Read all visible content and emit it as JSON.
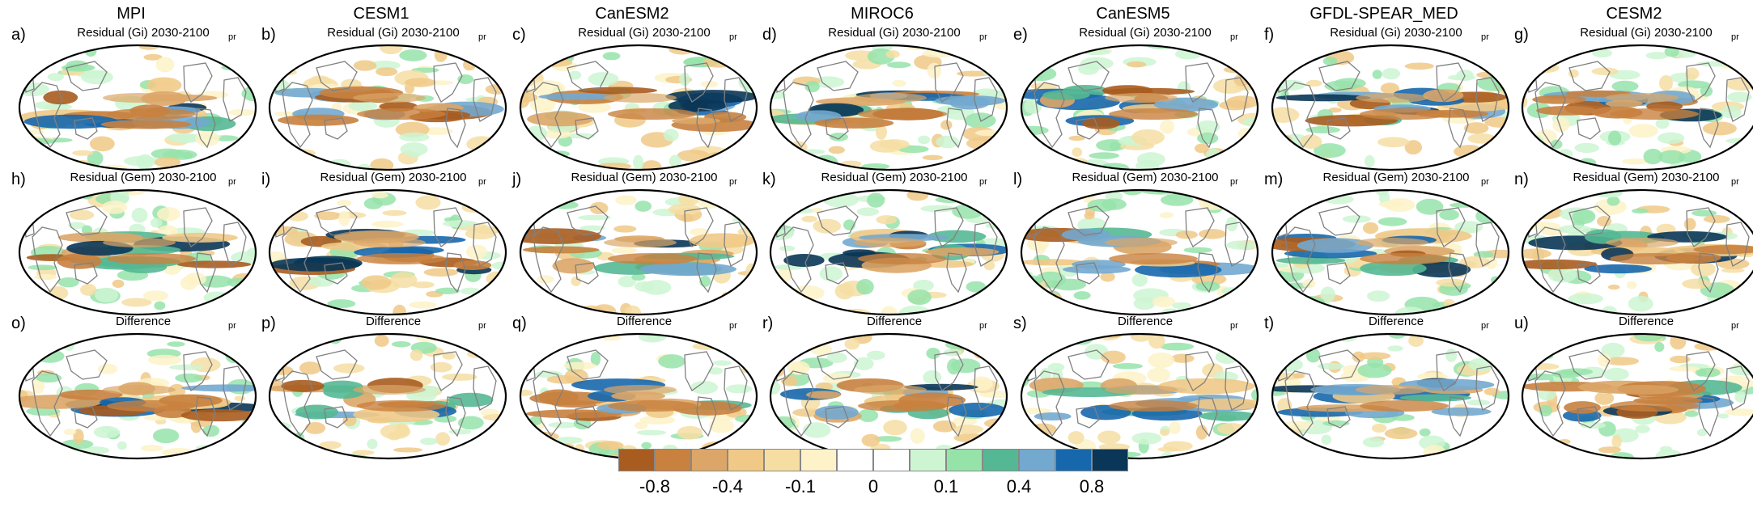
{
  "models": [
    "MPI",
    "CESM1",
    "CanESM2",
    "MIROC6",
    "CanESM5",
    "GFDL-SPEAR_MED",
    "CESM2"
  ],
  "rows": [
    {
      "title": "Residual (Gi) 2030-2100",
      "letters": [
        "a)",
        "b)",
        "c)",
        "d)",
        "e)",
        "f)",
        "g)"
      ]
    },
    {
      "title": "Residual (Gem) 2030-2100",
      "letters": [
        "h)",
        "i)",
        "j)",
        "k)",
        "l)",
        "m)",
        "n)"
      ]
    },
    {
      "title": "Difference",
      "letters": [
        "o)",
        "p)",
        "q)",
        "r)",
        "s)",
        "t)",
        "u)"
      ]
    }
  ],
  "variable": "pr",
  "colorbar": {
    "colors": [
      "#a95c1f",
      "#c8813f",
      "#dca668",
      "#f0c987",
      "#f6dea3",
      "#fdf2c8",
      "#ffffff",
      "#ffffff",
      "#cdf5d2",
      "#96e3aa",
      "#55b894",
      "#73a9cf",
      "#1767ac",
      "#0a3657"
    ],
    "labels": [
      "-0.8",
      "-0.4",
      "-0.1",
      "0",
      "0.1",
      "0.4",
      "0.8"
    ]
  }
}
